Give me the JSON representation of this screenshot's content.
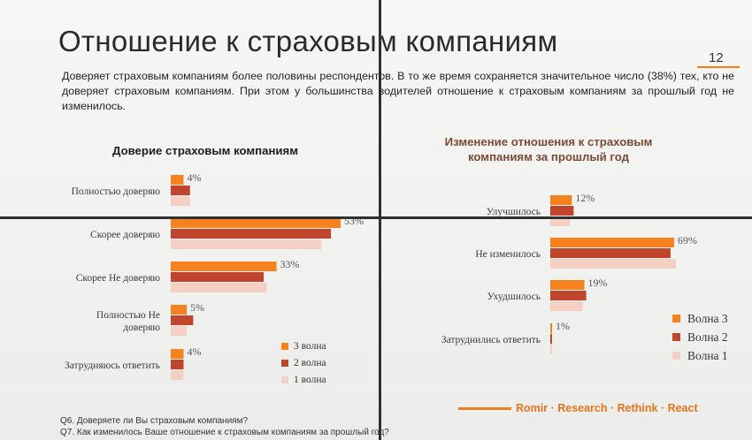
{
  "slide": {
    "title": "Отношение к страховым компаниям",
    "page_number": "12",
    "description": "Доверяет страховым компаниям более половины респондентов. В то же время сохраняется значительное число (38%) тех, кто не доверяет страховым компаниям. При этом у большинства водителей отношение к страховым компаниям за прошлый год не изменилось.",
    "footnotes": [
      "Q6. Доверяете ли Вы страховым компаниям?",
      "Q7. Как изменилось Ваше отношение к страховым компаниям за прошлый год?"
    ],
    "brand": "Romir · Research · Rethink · React"
  },
  "colors": {
    "wave3": "#f5821f",
    "wave2": "#c0452c",
    "wave1": "#f3cfc4",
    "brand": "#f07d1e"
  },
  "chart_data": [
    {
      "type": "bar",
      "orientation": "horizontal",
      "title": "Доверие страховым компаниям",
      "categories": [
        "Полностью доверяю",
        "Скорее доверяю",
        "Скорее Не доверяю",
        "Полностью Не доверяю",
        "Затрудняюсь ответить"
      ],
      "value_labels": [
        "4%",
        "53%",
        "33%",
        "5%",
        "4%"
      ],
      "series": [
        {
          "name": "3 волна",
          "values": [
            4,
            53,
            33,
            5,
            4
          ]
        },
        {
          "name": "2 волна",
          "values": [
            6,
            50,
            29,
            7,
            4
          ]
        },
        {
          "name": "1 волна",
          "values": [
            6,
            47,
            30,
            5,
            4
          ]
        }
      ],
      "legend": [
        "3 волна",
        "2 волна",
        "1 волна"
      ],
      "legend_position": "bottom-right"
    },
    {
      "type": "bar",
      "orientation": "horizontal",
      "title": "Изменение отношения к страховым компаниям за прошлый год",
      "categories": [
        "Улучшилось",
        "Не изменилось",
        "Ухудшилось",
        "Затруднились ответить"
      ],
      "value_labels": [
        "12%",
        "69%",
        "19%",
        "1%"
      ],
      "series": [
        {
          "name": "Волна 3",
          "values": [
            12,
            69,
            19,
            1
          ]
        },
        {
          "name": "Волна 2",
          "values": [
            13,
            67,
            20,
            0.5
          ]
        },
        {
          "name": "Волна 1",
          "values": [
            11,
            70,
            18,
            0.5
          ]
        }
      ],
      "legend": [
        "Волна 3",
        "Волна 2",
        "Волна 1"
      ],
      "legend_position": "bottom-right"
    }
  ]
}
